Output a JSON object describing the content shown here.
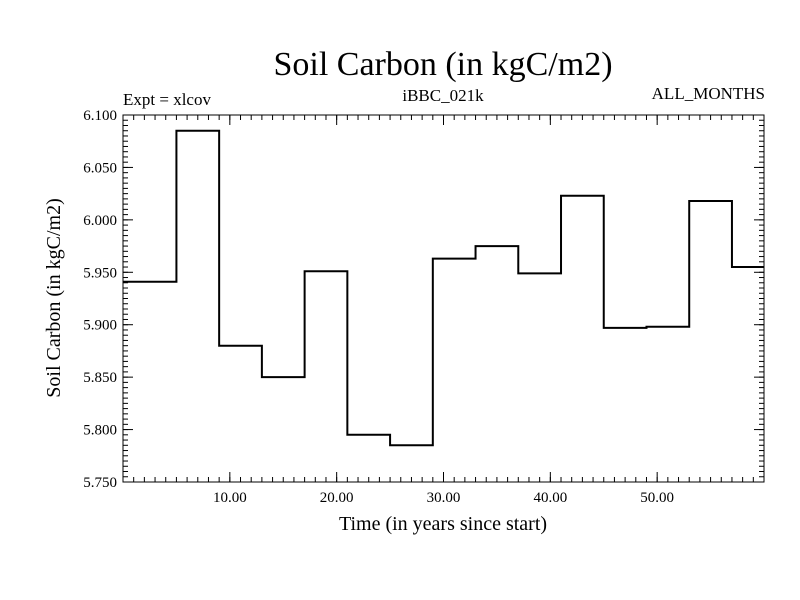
{
  "header": {
    "expt_label": "Expt = xlcov",
    "run_id": "iBBC_021k",
    "months": "ALL_MONTHS"
  },
  "chart_data": {
    "type": "line",
    "title": "Soil Carbon (in kgC/m2)",
    "xlabel": "Time (in years since start)",
    "ylabel": "Soil Carbon (in kgC/m2)",
    "xlim": [
      0,
      60
    ],
    "ylim": [
      5.75,
      6.1
    ],
    "x_ticks": [
      10,
      20,
      30,
      40,
      50
    ],
    "x_tick_labels": [
      "10.00",
      "20.00",
      "30.00",
      "40.00",
      "50.00"
    ],
    "y_ticks": [
      5.75,
      5.8,
      5.85,
      5.9,
      5.95,
      6.0,
      6.05,
      6.1
    ],
    "y_tick_labels": [
      "5.750",
      "5.800",
      "5.850",
      "5.900",
      "5.950",
      "6.000",
      "6.050",
      "6.100"
    ],
    "grid": false,
    "series": [
      {
        "step": true,
        "color": "#000000",
        "x": [
          0,
          5,
          9,
          13,
          17,
          21,
          25,
          29,
          33,
          37,
          41,
          45,
          49,
          53,
          57,
          60
        ],
        "y": [
          5.941,
          6.085,
          5.88,
          5.85,
          5.951,
          5.795,
          5.785,
          5.963,
          5.975,
          5.949,
          6.023,
          5.897,
          5.898,
          6.018,
          5.955,
          5.955
        ]
      }
    ]
  }
}
